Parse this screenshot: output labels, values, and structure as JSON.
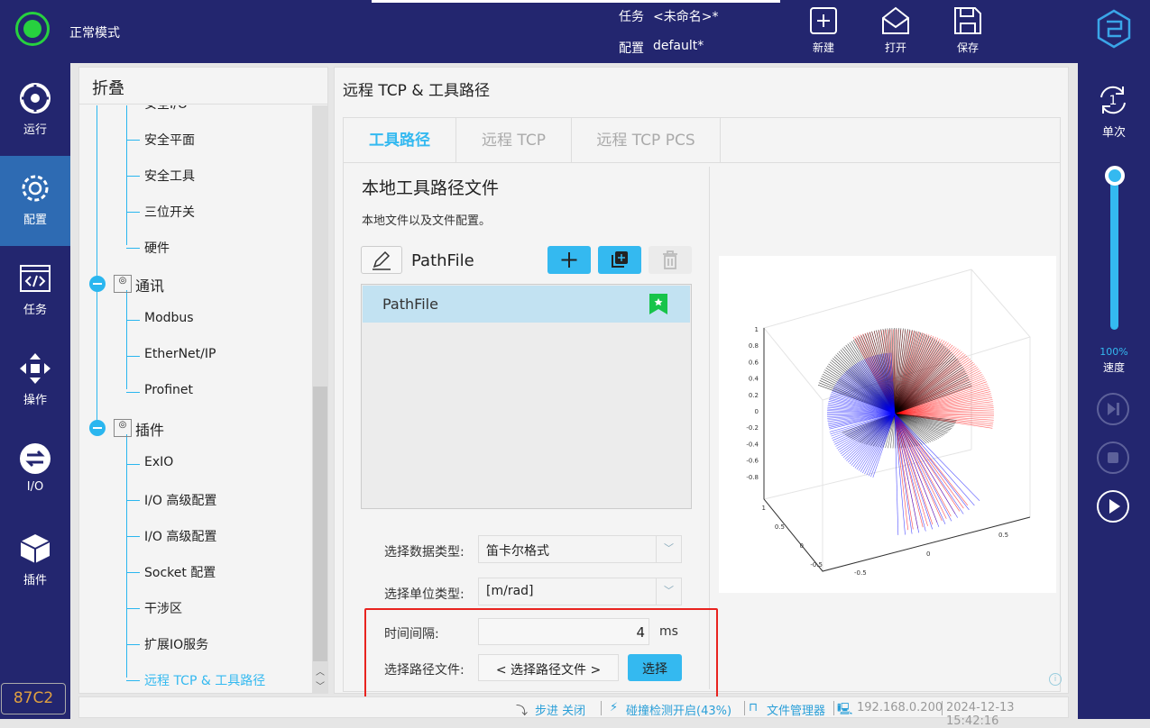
{
  "header": {
    "mode": "正常模式",
    "task_label": "任务",
    "task_value": "<未命名>*",
    "config_label": "配置",
    "config_value": "default*",
    "new": "新建",
    "open": "打开",
    "save": "保存"
  },
  "nav": {
    "items": [
      {
        "label": "运行"
      },
      {
        "label": "配置"
      },
      {
        "label": "任务"
      },
      {
        "label": "操作"
      },
      {
        "label": "I/O"
      },
      {
        "label": "插件"
      }
    ],
    "code": "87C2"
  },
  "right": {
    "mode": "单次",
    "speed_pct": "100%",
    "speed_label": "速度",
    "speed_value": 100
  },
  "tree": {
    "header": "折叠",
    "items": [
      "安全I/O",
      "安全平面",
      "安全工具",
      "三位开关",
      "硬件"
    ],
    "group1": "通讯",
    "g1items": [
      "Modbus",
      "EtherNet/IP",
      "Profinet"
    ],
    "group2": "插件",
    "g2items": [
      "ExIO",
      "I/O 高级配置",
      "I/O 高级配置",
      "Socket 配置",
      "干涉区",
      "扩展IO服务",
      "远程 TCP & 工具路径"
    ]
  },
  "main": {
    "title": "远程 TCP & 工具路径",
    "tabs": [
      "工具路径",
      "远程 TCP",
      "远程 TCP PCS"
    ],
    "section_title": "本地工具路径文件",
    "section_desc": "本地文件以及文件配置。",
    "current_file": "PathFile",
    "files": [
      "PathFile"
    ],
    "data_type_label": "选择数据类型:",
    "data_type_value": "笛卡尔格式",
    "unit_label": "选择单位类型:",
    "unit_value": "[m/rad]",
    "interval_label": "时间间隔:",
    "interval_value": "4",
    "interval_unit": "ms",
    "path_label": "选择路径文件:",
    "path_value": "< 选择路径文件 >",
    "choose": "选择",
    "plot": {
      "z_ticks": [
        "1",
        "0.8",
        "0.6",
        "0.4",
        "0.2",
        "0",
        "-0.2",
        "-0.4",
        "-0.6",
        "-0.8"
      ],
      "y_ticks": [
        "1",
        "0.5",
        "0",
        "-0.5"
      ],
      "x_ticks": [
        "0.5",
        "0",
        "-0.5"
      ],
      "colors": [
        "#ff0000",
        "#0000ff",
        "#000000"
      ]
    }
  },
  "status": {
    "step": "步进 关闭",
    "collision": "碰撞检测开启(43%)",
    "files": "文件管理器",
    "ip": "192.168.0.200",
    "time": "2024-12-13 15:42:16"
  }
}
